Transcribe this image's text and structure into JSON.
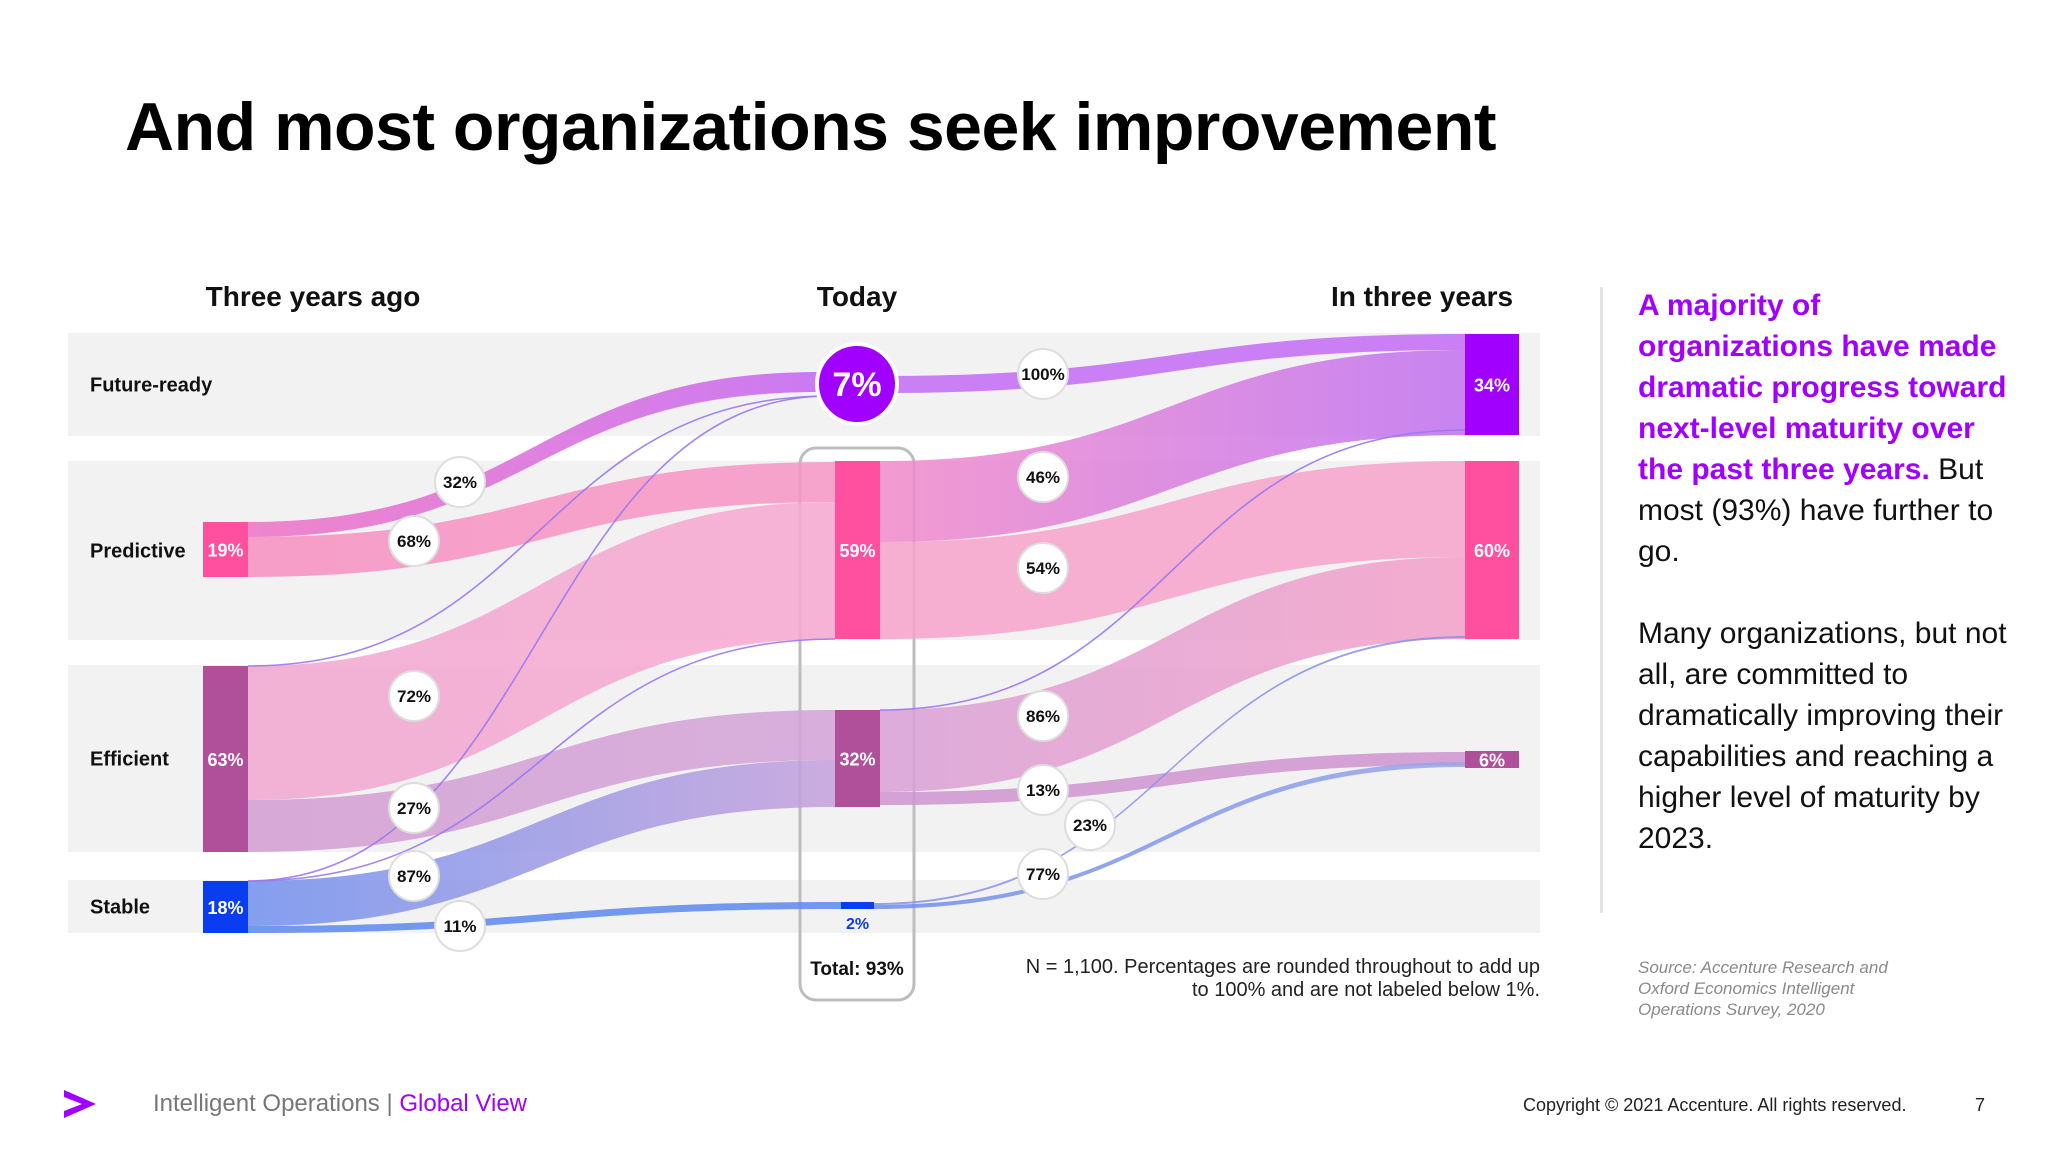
{
  "title": "And most organizations seek improvement",
  "colors": {
    "accent": "#a100ff",
    "future_ready": "#a100ff",
    "predictive": "#ff50a0",
    "efficient": "#b0509b",
    "stable": "#0a3cf0",
    "band_bg": "#f2f2f2"
  },
  "chart_data": {
    "type": "sankey",
    "columns": [
      "Three years ago",
      "Today",
      "In three years"
    ],
    "levels": [
      "Future-ready",
      "Predictive",
      "Efficient",
      "Stable"
    ],
    "nodes": [
      {
        "id": "p0",
        "column": 0,
        "level": "Predictive",
        "label": "19%",
        "value": 19
      },
      {
        "id": "e0",
        "column": 0,
        "level": "Efficient",
        "label": "63%",
        "value": 63
      },
      {
        "id": "s0",
        "column": 0,
        "level": "Stable",
        "label": "18%",
        "value": 18
      },
      {
        "id": "f1",
        "column": 1,
        "level": "Future-ready",
        "label": "7%",
        "value": 7
      },
      {
        "id": "p1",
        "column": 1,
        "level": "Predictive",
        "label": "59%",
        "value": 59
      },
      {
        "id": "e1",
        "column": 1,
        "level": "Efficient",
        "label": "32%",
        "value": 32
      },
      {
        "id": "s1",
        "column": 1,
        "level": "Stable",
        "label": "2%",
        "value": 2
      },
      {
        "id": "f2",
        "column": 2,
        "level": "Future-ready",
        "label": "34%",
        "value": 34
      },
      {
        "id": "p2",
        "column": 2,
        "level": "Predictive",
        "label": "60%",
        "value": 60
      },
      {
        "id": "e2",
        "column": 2,
        "level": "Efficient",
        "label": "6%",
        "value": 6
      }
    ],
    "flows": [
      {
        "from": "p0",
        "to": "f1",
        "label": "32%",
        "value": 32
      },
      {
        "from": "p0",
        "to": "p1",
        "label": "68%",
        "value": 68
      },
      {
        "from": "e0",
        "to": "p1",
        "label": "72%",
        "value": 72
      },
      {
        "from": "e0",
        "to": "e1",
        "label": "27%",
        "value": 27
      },
      {
        "from": "e0",
        "to": "f1",
        "value": 1
      },
      {
        "from": "s0",
        "to": "e1",
        "label": "87%",
        "value": 87
      },
      {
        "from": "s0",
        "to": "s1",
        "label": "11%",
        "value": 11
      },
      {
        "from": "s0",
        "to": "f1",
        "value": 1
      },
      {
        "from": "s0",
        "to": "p1",
        "value": 1
      },
      {
        "from": "f1",
        "to": "f2",
        "label": "100%",
        "value": 100
      },
      {
        "from": "p1",
        "to": "f2",
        "label": "46%",
        "value": 46
      },
      {
        "from": "p1",
        "to": "p2",
        "label": "54%",
        "value": 54
      },
      {
        "from": "e1",
        "to": "p2",
        "label": "86%",
        "value": 86
      },
      {
        "from": "e1",
        "to": "e2",
        "label": "13%",
        "value": 13
      },
      {
        "from": "e1",
        "to": "f2",
        "value": 1
      },
      {
        "from": "s1",
        "to": "p2",
        "label": "23%",
        "value": 23
      },
      {
        "from": "s1",
        "to": "e2",
        "label": "77%",
        "value": 77
      }
    ],
    "total_label": "Total: 93%"
  },
  "panel": {
    "highlight": "A majority of organizations have made dramatic progress toward next-level maturity over the past three years.",
    "highlight_rest": " But most (93%) have further to go.",
    "paragraph2": "Many organizations, but not all, are committed to dramatically improving their capabilities and reaching a higher level of maturity by 2023."
  },
  "source": "Source: Accenture Research and Oxford Economics Intelligent Operations Survey, 2020",
  "note": "N = 1,100. Percentages are rounded throughout to add up to 100% and are not labeled below 1%.",
  "footer": {
    "left": "Intelligent Operations | ",
    "left_highlight": "Global View",
    "copyright": "Copyright © 2021 Accenture. All rights reserved.",
    "page": "7"
  }
}
